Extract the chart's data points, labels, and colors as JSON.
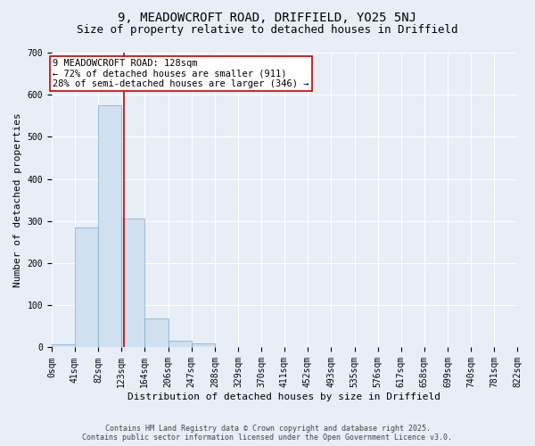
{
  "title_line1": "9, MEADOWCROFT ROAD, DRIFFIELD, YO25 5NJ",
  "title_line2": "Size of property relative to detached houses in Driffield",
  "xlabel": "Distribution of detached houses by size in Driffield",
  "ylabel": "Number of detached properties",
  "bins": [
    0,
    41,
    82,
    123,
    164,
    206,
    247,
    288,
    329,
    370,
    411,
    452,
    493,
    535,
    576,
    617,
    658,
    699,
    740,
    781,
    822
  ],
  "bar_heights": [
    7,
    285,
    575,
    305,
    68,
    15,
    10,
    0,
    0,
    0,
    0,
    0,
    0,
    0,
    0,
    0,
    0,
    0,
    0,
    0
  ],
  "bar_color": "#d0e0f0",
  "bar_edge_color": "#7aaac8",
  "property_size": 128,
  "vline_color": "#cc0000",
  "annotation_text": "9 MEADOWCROFT ROAD: 128sqm\n← 72% of detached houses are smaller (911)\n28% of semi-detached houses are larger (346) →",
  "annotation_box_color": "#ffffff",
  "annotation_border_color": "#cc0000",
  "ylim": [
    0,
    700
  ],
  "yticks": [
    0,
    100,
    200,
    300,
    400,
    500,
    600,
    700
  ],
  "background_color": "#e8eef5",
  "plot_background_color": "#e8eef5",
  "grid_color": "#ffffff",
  "footer_line1": "Contains HM Land Registry data © Crown copyright and database right 2025.",
  "footer_line2": "Contains public sector information licensed under the Open Government Licence v3.0.",
  "title_fontsize": 10,
  "subtitle_fontsize": 9,
  "axis_label_fontsize": 8,
  "tick_fontsize": 7,
  "annotation_fontsize": 7.5,
  "footer_fontsize": 6
}
